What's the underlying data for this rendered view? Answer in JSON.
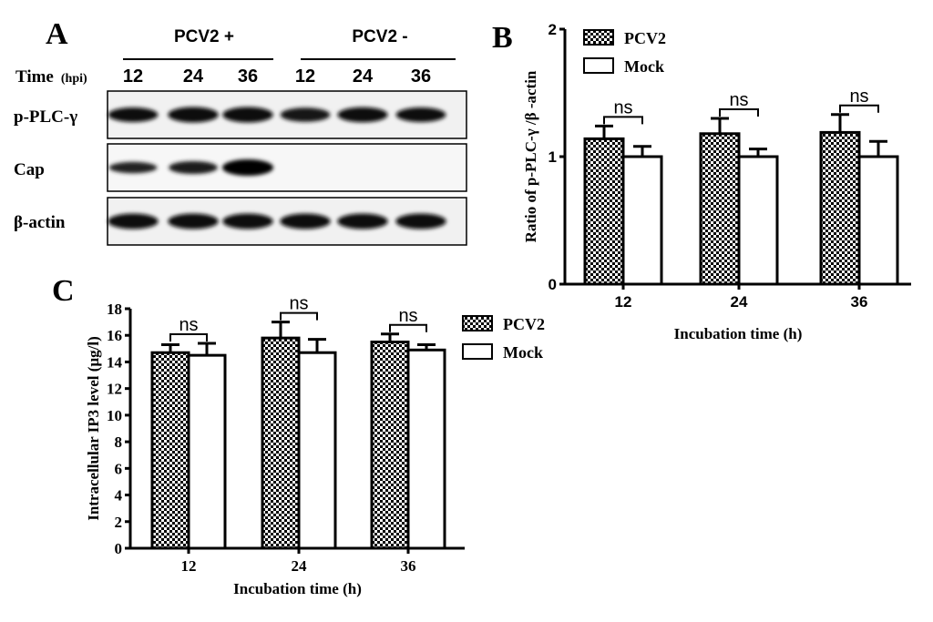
{
  "panels": {
    "a": "A",
    "b": "B",
    "c": "C"
  },
  "blot": {
    "group_pos": "PCV2 +",
    "group_neg": "PCV2 -",
    "time_label": "Time",
    "time_unit": "(hpi)",
    "lanes": [
      "12",
      "24",
      "36",
      "12",
      "24",
      "36"
    ],
    "rows": [
      {
        "label": "p-PLC-γ",
        "intensity": [
          0.8,
          0.9,
          0.9,
          0.75,
          0.85,
          0.8
        ]
      },
      {
        "label": "Cap",
        "intensity": [
          0.45,
          0.6,
          1.0,
          0.0,
          0.0,
          0.0
        ]
      },
      {
        "label": "β-actin",
        "intensity": [
          0.9,
          0.9,
          0.9,
          0.9,
          0.9,
          0.9
        ]
      }
    ]
  },
  "chart_data": [
    {
      "type": "bar",
      "panel": "B",
      "categories": [
        "12",
        "24",
        "36"
      ],
      "series": [
        {
          "name": "PCV2",
          "values": [
            1.14,
            1.18,
            1.19
          ],
          "errors": [
            0.1,
            0.12,
            0.14
          ]
        },
        {
          "name": "Mock",
          "values": [
            1.0,
            1.0,
            1.0
          ],
          "errors": [
            0.08,
            0.06,
            0.12
          ]
        }
      ],
      "ylabel": "Ratio of  p-PLC-γ /β -actin",
      "xlabel": "Incubation time (h)",
      "ylim": [
        0,
        2
      ],
      "yticks": [
        "0",
        "1",
        "2"
      ],
      "annotations": [
        "ns",
        "ns",
        "ns"
      ],
      "legend_position": "top-left"
    },
    {
      "type": "bar",
      "panel": "C",
      "categories": [
        "12",
        "24",
        "36"
      ],
      "series": [
        {
          "name": "PCV2",
          "values": [
            14.7,
            15.8,
            15.5
          ],
          "errors": [
            0.6,
            1.2,
            0.6
          ]
        },
        {
          "name": "Mock",
          "values": [
            14.5,
            14.7,
            14.9
          ],
          "errors": [
            0.9,
            1.0,
            0.4
          ]
        }
      ],
      "ylabel": "Intracellular IP3 level (µg/l)",
      "xlabel": "Incubation time (h)",
      "ylim": [
        0,
        18
      ],
      "yticks": [
        "0",
        "2",
        "4",
        "6",
        "8",
        "10",
        "12",
        "14",
        "16",
        "18"
      ],
      "annotations": [
        "ns",
        "ns",
        "ns"
      ],
      "legend_position": "right"
    }
  ]
}
